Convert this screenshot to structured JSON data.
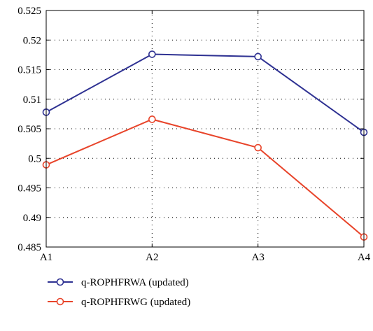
{
  "chart_data": {
    "type": "line",
    "categories": [
      "A1",
      "A2",
      "A3",
      "A4"
    ],
    "series": [
      {
        "name": "q-ROPHFRWA (updated)",
        "values": [
          0.5078,
          0.5176,
          0.5172,
          0.5044
        ],
        "color": "#2e3192"
      },
      {
        "name": "q-ROPHFRWG (updated)",
        "values": [
          0.4989,
          0.5066,
          0.5018,
          0.4867
        ],
        "color": "#e8442a"
      }
    ],
    "title": "",
    "xlabel": "",
    "ylabel": "",
    "ylim": [
      0.485,
      0.525
    ],
    "yticks": [
      "0.485",
      "0.49",
      "0.495",
      "0.5",
      "0.505",
      "0.51",
      "0.515",
      "0.52",
      "0.525"
    ],
    "marker": "open-circle",
    "grid": "dotted",
    "legend_position": "bottom-left"
  }
}
